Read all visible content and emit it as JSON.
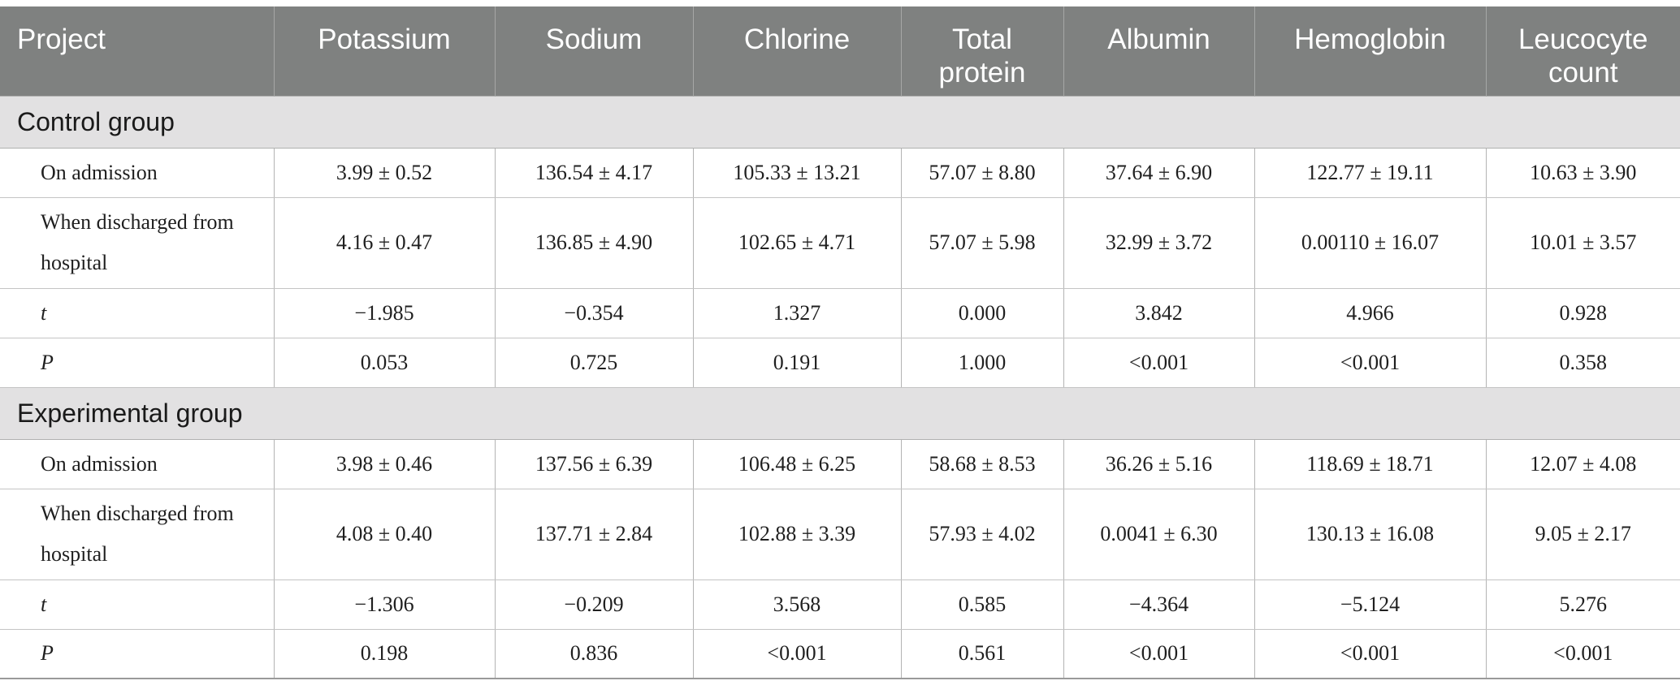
{
  "headers": [
    "Project",
    "Potassium",
    "Sodium",
    "Chlorine",
    "Total protein",
    "Albumin",
    "Hemoglobin",
    "Leucocyte count"
  ],
  "groups": [
    {
      "title": "Control group",
      "rows": [
        {
          "label": "On admission",
          "values": [
            "3.99 ± 0.52",
            "136.54 ± 4.17",
            "105.33 ± 13.21",
            "57.07 ± 8.80",
            "37.64 ± 6.90",
            "122.77 ± 19.11",
            "10.63 ± 3.90"
          ]
        },
        {
          "label": "When discharged from hospital",
          "values": [
            "4.16 ± 0.47",
            "136.85 ± 4.90",
            "102.65 ± 4.71",
            "57.07 ± 5.98",
            "32.99 ± 3.72",
            "0.00110 ± 16.07",
            "10.01 ± 3.57"
          ]
        },
        {
          "label": "t",
          "values": [
            "−1.985",
            "−0.354",
            "1.327",
            "0.000",
            "3.842",
            "4.966",
            "0.928"
          ]
        },
        {
          "label": "P",
          "values": [
            "0.053",
            "0.725",
            "0.191",
            "1.000",
            "<0.001",
            "<0.001",
            "0.358"
          ]
        }
      ]
    },
    {
      "title": "Experimental group",
      "rows": [
        {
          "label": "On admission",
          "values": [
            "3.98 ± 0.46",
            "137.56 ± 6.39",
            "106.48 ± 6.25",
            "58.68 ± 8.53",
            "36.26 ± 5.16",
            "118.69 ± 18.71",
            "12.07 ± 4.08"
          ]
        },
        {
          "label": "When discharged from hospital",
          "values": [
            "4.08 ± 0.40",
            "137.71 ± 2.84",
            "102.88 ± 3.39",
            "57.93 ± 4.02",
            "0.0041 ± 6.30",
            "130.13 ± 16.08",
            "9.05 ± 2.17"
          ]
        },
        {
          "label": "t",
          "values": [
            "−1.306",
            "−0.209",
            "3.568",
            "0.585",
            "−4.364",
            "−5.124",
            "5.276"
          ]
        },
        {
          "label": "P",
          "values": [
            "0.198",
            "0.836",
            "<0.001",
            "0.561",
            "<0.001",
            "<0.001",
            "<0.001"
          ]
        }
      ]
    }
  ]
}
